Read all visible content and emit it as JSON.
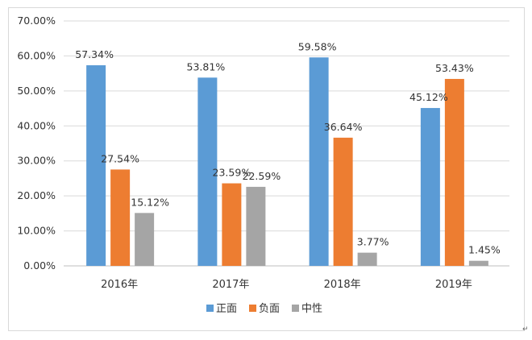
{
  "chart_data": {
    "type": "bar",
    "title": "",
    "xlabel": "",
    "ylabel": "",
    "categories": [
      "2016年",
      "2017年",
      "2018年",
      "2019年"
    ],
    "series": [
      {
        "name": "正面",
        "color": "#5b9bd5",
        "values": [
          57.34,
          53.81,
          59.58,
          45.12
        ]
      },
      {
        "name": "负面",
        "color": "#ed7d31",
        "values": [
          27.54,
          23.59,
          36.64,
          53.43
        ]
      },
      {
        "name": "中性",
        "color": "#a5a5a5",
        "values": [
          15.12,
          22.59,
          3.77,
          1.45
        ]
      }
    ],
    "data_labels": [
      [
        "57.34%",
        "53.81%",
        "59.58%",
        "45.12%"
      ],
      [
        "27.54%",
        "23.59%",
        "36.64%",
        "53.43%"
      ],
      [
        "15.12%",
        "22.59%",
        "3.77%",
        "1.45%"
      ]
    ],
    "ylim": [
      0,
      70
    ],
    "y_ticks": [
      0,
      10,
      20,
      30,
      40,
      50,
      60,
      70
    ],
    "y_tick_labels": [
      "0.00%",
      "10.00%",
      "20.00%",
      "30.00%",
      "40.00%",
      "50.00%",
      "60.00%",
      "70.00%"
    ],
    "grid": true,
    "legend_position": "bottom"
  }
}
